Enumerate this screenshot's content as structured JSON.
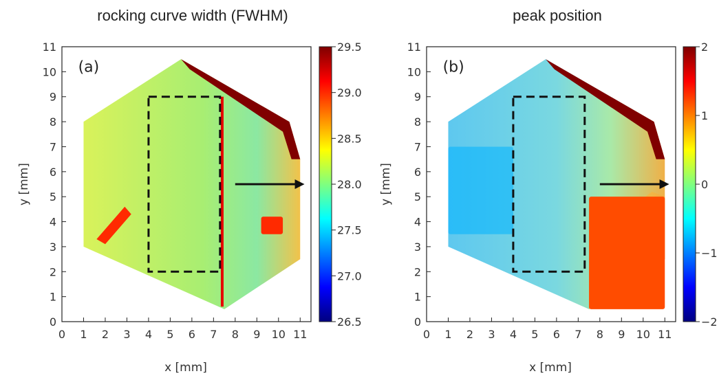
{
  "chart_data": [
    {
      "type": "heatmap",
      "panel_label": "(a)",
      "title": "rocking curve width (FWHM)",
      "xlabel": "x [mm]",
      "ylabel": "y [mm]",
      "xlim": [
        0,
        11.5
      ],
      "ylim": [
        0,
        11
      ],
      "xticks": [
        "0",
        "1",
        "2",
        "3",
        "4",
        "5",
        "6",
        "7",
        "8",
        "9",
        "10",
        "11"
      ],
      "yticks": [
        "0",
        "1",
        "2",
        "3",
        "4",
        "5",
        "6",
        "7",
        "8",
        "9",
        "10",
        "11"
      ],
      "colorbar": {
        "range": [
          26.5,
          29.5
        ],
        "ticks": [
          "26.5",
          "27.0",
          "27.5",
          "28.0",
          "28.5",
          "29.0",
          "29.5"
        ],
        "colormap": "jet"
      },
      "sample_outline": [
        [
          1,
          3
        ],
        [
          1,
          8
        ],
        [
          5.5,
          10.5
        ],
        [
          10.5,
          8
        ],
        [
          11,
          6.5
        ],
        [
          11,
          2.5
        ],
        [
          7.5,
          0.5
        ],
        [
          1,
          3
        ]
      ],
      "dominant_value": 28.0,
      "dashed_rectangle": {
        "x": [
          4,
          7.3
        ],
        "y": [
          2,
          9
        ]
      },
      "arrow": {
        "from": [
          8,
          5.5
        ],
        "to": [
          11.2,
          5.5
        ]
      },
      "features": [
        {
          "name": "top-right edge",
          "value": 29.5
        },
        {
          "name": "vertical line near x=7.4",
          "value": 29.2
        },
        {
          "name": "left diagonal stripe",
          "x_range": [
            1.6,
            3.2
          ],
          "y_range": [
            3.3,
            4.6
          ],
          "value": 29.0
        },
        {
          "name": "right stripe",
          "x_range": [
            9.2,
            10.2
          ],
          "y_range": [
            3.5,
            4.2
          ],
          "value": 29.0
        }
      ]
    },
    {
      "type": "heatmap",
      "panel_label": "(b)",
      "title": "peak position",
      "xlabel": "x [mm]",
      "ylabel": "y [mm]",
      "xlim": [
        0,
        11.5
      ],
      "ylim": [
        0,
        11
      ],
      "xticks": [
        "0",
        "1",
        "2",
        "3",
        "4",
        "5",
        "6",
        "7",
        "8",
        "9",
        "10",
        "11"
      ],
      "yticks": [
        "0",
        "1",
        "2",
        "3",
        "4",
        "5",
        "6",
        "7",
        "8",
        "9",
        "10",
        "11"
      ],
      "colorbar": {
        "range": [
          -2,
          2
        ],
        "ticks": [
          "2",
          "1",
          "0",
          "−1",
          "−2"
        ],
        "colormap": "jet"
      },
      "sample_outline": [
        [
          1,
          3
        ],
        [
          1,
          8
        ],
        [
          5.5,
          10.5
        ],
        [
          10.5,
          8
        ],
        [
          11,
          6.5
        ],
        [
          11,
          2.5
        ],
        [
          7.5,
          0.5
        ],
        [
          1,
          3
        ]
      ],
      "dominant_value": -0.3,
      "dashed_rectangle": {
        "x": [
          4,
          7.3
        ],
        "y": [
          2,
          9
        ]
      },
      "arrow": {
        "from": [
          8,
          5.5
        ],
        "to": [
          11.2,
          5.5
        ]
      },
      "features": [
        {
          "name": "top-right edge",
          "value": 2.0
        },
        {
          "name": "lower-right region",
          "x_range": [
            7.5,
            11
          ],
          "y_range": [
            0.5,
            5
          ],
          "value": 1.2
        },
        {
          "name": "left blue region",
          "x_range": [
            1,
            4
          ],
          "y_range": [
            3.5,
            7
          ],
          "value": -0.8
        }
      ]
    }
  ]
}
